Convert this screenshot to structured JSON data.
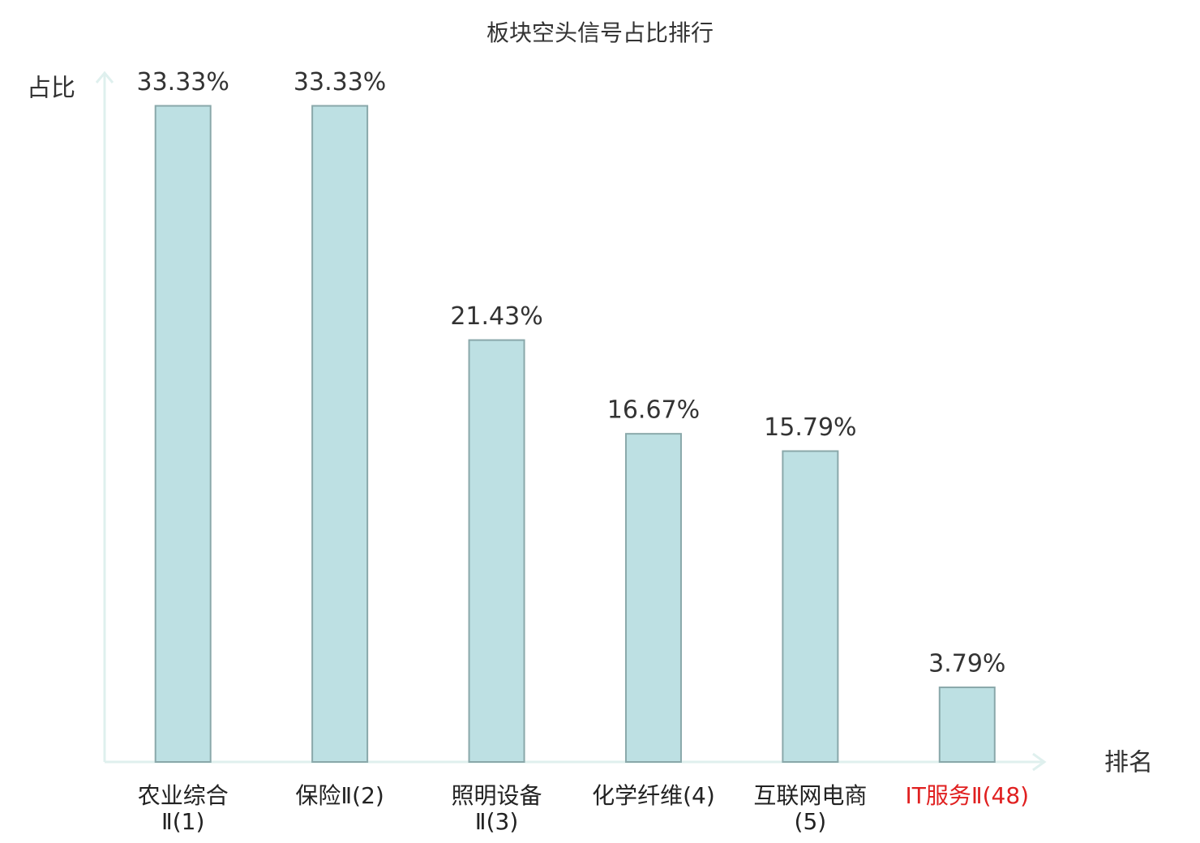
{
  "chart_data": {
    "type": "bar",
    "title": "板块空头信号占比排行",
    "y_label": "占比",
    "x_label": "排名",
    "categories": [
      "农业综合Ⅱ(1)",
      "保险Ⅱ(2)",
      "照明设备Ⅱ(3)",
      "化学纤维(4)",
      "互联网电商(5)",
      "IT服务Ⅱ(48)"
    ],
    "values": [
      33.33,
      33.33,
      21.43,
      16.67,
      15.79,
      3.79
    ],
    "value_labels": [
      "33.33%",
      "33.33%",
      "21.43%",
      "16.67%",
      "15.79%",
      "3.79%"
    ],
    "color": "#bde0e3",
    "edge_color": "#8aa8aa",
    "category_label_colors": [
      "#222222",
      "#222222",
      "#222222",
      "#222222",
      "#222222",
      "#e02020"
    ],
    "ylim": [
      0,
      35
    ]
  }
}
